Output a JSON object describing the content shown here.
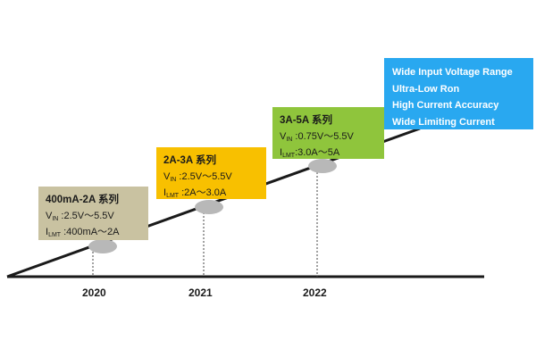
{
  "years": [
    "2020",
    "2021",
    "2022"
  ],
  "boxes": [
    {
      "title": "400mA-2A  系列",
      "v_sym": "V",
      "v_sub": "IN",
      "v_text": " :2.5V～5.5V",
      "i_sym": "I",
      "i_sub": "LMT",
      "i_text": " :400mA～2A",
      "color": "#c9c2a1"
    },
    {
      "title": "2A-3A  系列",
      "v_sym": "V",
      "v_sub": "IN",
      "v_text": " :2.5V～5.5V",
      "i_sym": "I",
      "i_sub": "LMT",
      "i_text": " :2A～3.0A",
      "color": "#f8c000"
    },
    {
      "title": "3A-5A  系列",
      "v_sym": "V",
      "v_sub": "IN",
      "v_text": " :0.75V～5.5V",
      "i_sym": "I",
      "i_sub": "LMT",
      "i_text": ":3.0A～5A",
      "color": "#8fc53c"
    }
  ],
  "features": [
    "Wide Input Voltage Range",
    "Ultra-Low Ron",
    "High Current Accuracy",
    "Wide Limiting Current"
  ],
  "colors": {
    "features_bg": "#29a8f0",
    "milestone": "#b8b8b8",
    "line": "#1a1a1a"
  }
}
